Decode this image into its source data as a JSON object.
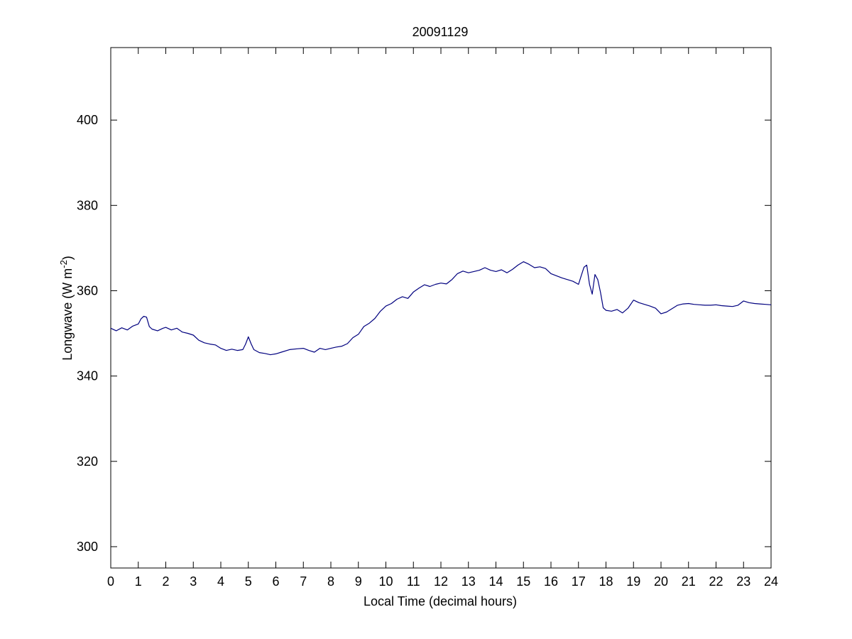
{
  "chart_data": {
    "type": "line",
    "title": "20091129",
    "xlabel": "Local Time (decimal hours)",
    "ylabel": {
      "main": "Longwave (W m",
      "superscript": "-2",
      "close": ")"
    },
    "xlim": [
      0,
      24
    ],
    "ylim": [
      295,
      417
    ],
    "xticks": [
      0,
      1,
      2,
      3,
      4,
      5,
      6,
      7,
      8,
      9,
      10,
      11,
      12,
      13,
      14,
      15,
      16,
      17,
      18,
      19,
      20,
      21,
      22,
      23,
      24
    ],
    "yticks": [
      300,
      320,
      340,
      360,
      380,
      400
    ],
    "grid": false,
    "line_color": "#00007f",
    "series": [
      {
        "x": [
          0.0,
          0.2,
          0.4,
          0.6,
          0.8,
          1.0,
          1.1,
          1.2,
          1.3,
          1.4,
          1.5,
          1.7,
          1.9,
          2.0,
          2.2,
          2.4,
          2.6,
          2.8,
          3.0,
          3.2,
          3.4,
          3.6,
          3.8,
          4.0,
          4.2,
          4.4,
          4.6,
          4.8,
          4.9,
          5.0,
          5.1,
          5.2,
          5.4,
          5.6,
          5.8,
          6.0,
          6.2,
          6.5,
          6.8,
          7.0,
          7.2,
          7.4,
          7.6,
          7.8,
          8.0,
          8.2,
          8.4,
          8.6,
          8.8,
          9.0,
          9.2,
          9.4,
          9.6,
          9.8,
          10.0,
          10.2,
          10.4,
          10.6,
          10.8,
          11.0,
          11.2,
          11.4,
          11.6,
          11.8,
          12.0,
          12.2,
          12.4,
          12.6,
          12.8,
          13.0,
          13.2,
          13.4,
          13.6,
          13.8,
          14.0,
          14.2,
          14.4,
          14.6,
          14.8,
          15.0,
          15.2,
          15.4,
          15.6,
          15.8,
          16.0,
          16.2,
          16.4,
          16.6,
          16.8,
          17.0,
          17.1,
          17.2,
          17.3,
          17.4,
          17.5,
          17.6,
          17.7,
          17.8,
          17.9,
          18.0,
          18.2,
          18.4,
          18.6,
          18.8,
          19.0,
          19.2,
          19.4,
          19.6,
          19.8,
          20.0,
          20.2,
          20.4,
          20.6,
          20.8,
          21.0,
          21.2,
          21.4,
          21.6,
          21.8,
          22.0,
          22.2,
          22.4,
          22.6,
          22.8,
          23.0,
          23.2,
          23.4,
          23.6,
          23.8,
          24.0
        ],
        "y": [
          351.2,
          350.6,
          351.3,
          350.8,
          351.7,
          352.2,
          353.4,
          354.0,
          353.8,
          351.6,
          351.0,
          350.6,
          351.2,
          351.4,
          350.8,
          351.2,
          350.3,
          350.0,
          349.6,
          348.4,
          347.8,
          347.5,
          347.3,
          346.5,
          346.0,
          346.3,
          346.0,
          346.2,
          347.5,
          349.2,
          347.6,
          346.2,
          345.5,
          345.3,
          345.0,
          345.2,
          345.6,
          346.2,
          346.4,
          346.5,
          346.0,
          345.6,
          346.5,
          346.2,
          346.5,
          346.8,
          347.0,
          347.6,
          349.0,
          349.8,
          351.6,
          352.4,
          353.5,
          355.2,
          356.4,
          357.0,
          358.0,
          358.6,
          358.2,
          359.7,
          360.6,
          361.4,
          361.0,
          361.5,
          361.8,
          361.6,
          362.6,
          364.0,
          364.6,
          364.2,
          364.5,
          364.8,
          365.4,
          364.8,
          364.5,
          364.9,
          364.2,
          365.0,
          366.0,
          366.8,
          366.2,
          365.4,
          365.6,
          365.2,
          364.0,
          363.5,
          363.0,
          362.6,
          362.2,
          361.5,
          363.5,
          365.5,
          366.0,
          361.5,
          359.2,
          363.8,
          362.6,
          359.6,
          356.0,
          355.4,
          355.2,
          355.6,
          354.8,
          355.9,
          357.8,
          357.2,
          356.8,
          356.4,
          355.9,
          354.6,
          355.0,
          355.8,
          356.6,
          356.9,
          357.0,
          356.8,
          356.7,
          356.6,
          356.6,
          356.7,
          356.5,
          356.4,
          356.3,
          356.6,
          357.6,
          357.2,
          357.0,
          356.9,
          356.8,
          356.7
        ]
      }
    ]
  }
}
